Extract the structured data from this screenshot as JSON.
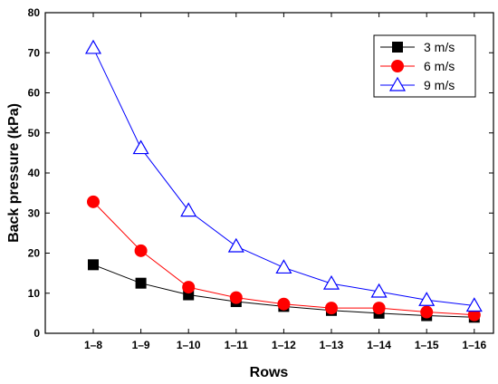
{
  "chart_data": {
    "type": "line",
    "xlabel": "Rows",
    "ylabel": "Back pressure (kPa)",
    "ylim": [
      0,
      80
    ],
    "yticks": [
      0,
      10,
      20,
      30,
      40,
      50,
      60,
      70,
      80
    ],
    "categories": [
      "1–8",
      "1–9",
      "1–10",
      "1–11",
      "1–12",
      "1–13",
      "1–14",
      "1–15",
      "1–16"
    ],
    "grid": false,
    "legend_position": "top-right",
    "series": [
      {
        "name": "3 m/s",
        "marker": "square",
        "color": "#000000",
        "values": [
          17.1,
          12.5,
          9.6,
          7.9,
          6.7,
          5.7,
          5.0,
          4.4,
          4.0
        ]
      },
      {
        "name": "6 m/s",
        "marker": "circle",
        "color": "#ff0000",
        "values": [
          32.8,
          20.6,
          11.5,
          8.9,
          7.3,
          6.3,
          6.3,
          5.3,
          4.6
        ]
      },
      {
        "name": "9 m/s",
        "marker": "triangle-open",
        "color": "#0000ff",
        "values": [
          71.2,
          46.2,
          30.6,
          21.7,
          16.4,
          12.4,
          10.4,
          8.3,
          6.9
        ]
      }
    ]
  }
}
